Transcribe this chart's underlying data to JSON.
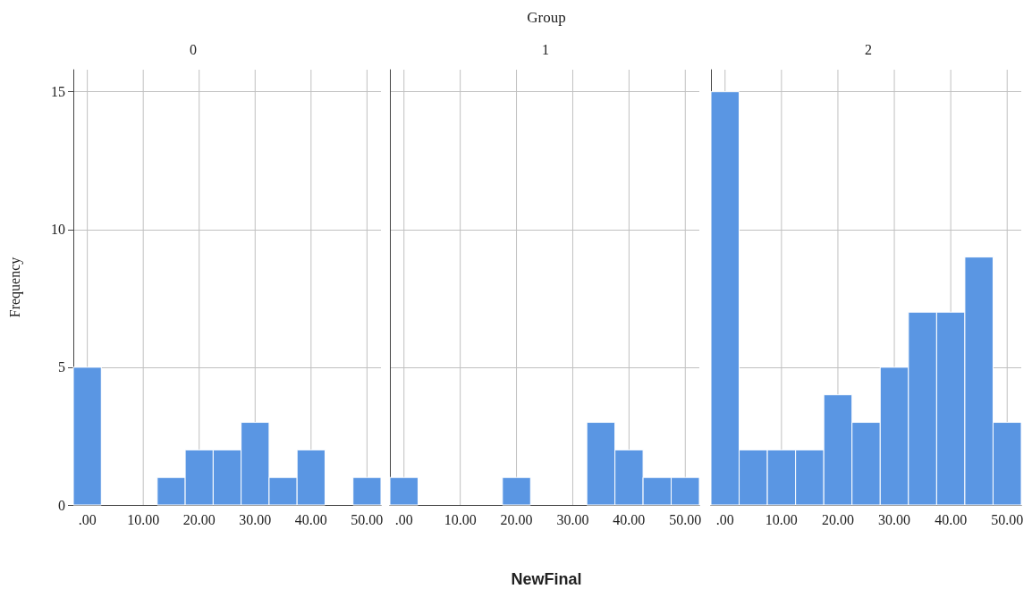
{
  "chart_data": [
    {
      "type": "histogram",
      "title": "0",
      "annotations": [
        "Group"
      ],
      "ylabel": "Frequency",
      "bins": [
        -2.5,
        2.5,
        7.5,
        12.5,
        17.5,
        22.5,
        27.5,
        32.5,
        37.5,
        42.5,
        47.5,
        52.5
      ],
      "values": [
        5,
        0,
        0,
        1,
        2,
        2,
        3,
        1,
        2,
        0,
        1
      ],
      "color": "#5a96e3",
      "xlim": [
        -2.5,
        52.5
      ],
      "xticks": [
        {
          "value": 0,
          "label": ".00"
        },
        {
          "value": 10,
          "label": "10.00"
        },
        {
          "value": 20,
          "label": "20.00"
        },
        {
          "value": 30,
          "label": "30.00"
        },
        {
          "value": 40,
          "label": "40.00"
        },
        {
          "value": 50,
          "label": "50.00"
        }
      ],
      "ylim": [
        0,
        15.8
      ],
      "yticks": [
        0,
        5,
        10,
        15
      ],
      "grid": true
    },
    {
      "type": "histogram",
      "title": "1",
      "xlabel": "NewFinal",
      "bins": [
        -2.5,
        2.5,
        7.5,
        12.5,
        17.5,
        22.5,
        27.5,
        32.5,
        37.5,
        42.5,
        47.5,
        52.5
      ],
      "values": [
        1,
        0,
        0,
        0,
        1,
        0,
        0,
        3,
        2,
        1,
        1
      ],
      "color": "#5a96e3",
      "xlim": [
        -2.5,
        52.5
      ],
      "xticks": [
        {
          "value": 0,
          "label": ".00"
        },
        {
          "value": 10,
          "label": "10.00"
        },
        {
          "value": 20,
          "label": "20.00"
        },
        {
          "value": 30,
          "label": "30.00"
        },
        {
          "value": 40,
          "label": "40.00"
        },
        {
          "value": 50,
          "label": "50.00"
        }
      ],
      "ylim": [
        0,
        15.8
      ],
      "yticks": [
        0,
        5,
        10,
        15
      ],
      "grid": true,
      "tick_labels": "x"
    },
    {
      "type": "histogram",
      "title": "2",
      "bins": [
        -2.5,
        2.5,
        7.5,
        12.5,
        17.5,
        22.5,
        27.5,
        32.5,
        37.5,
        42.5,
        47.5,
        52.5
      ],
      "values": [
        15,
        2,
        2,
        2,
        4,
        3,
        5,
        7,
        7,
        9,
        3
      ],
      "color": "#5a96e3",
      "xlim": [
        -2.5,
        52.5
      ],
      "xticks": [
        {
          "value": 0,
          "label": ".00"
        },
        {
          "value": 10,
          "label": "10.00"
        },
        {
          "value": 20,
          "label": "20.00"
        },
        {
          "value": 30,
          "label": "30.00"
        },
        {
          "value": 40,
          "label": "40.00"
        },
        {
          "value": 50,
          "label": "50.00"
        }
      ],
      "ylim": [
        0,
        15.8
      ],
      "yticks": [
        0,
        5,
        10,
        15
      ],
      "grid": true,
      "tick_labels": "x"
    }
  ]
}
